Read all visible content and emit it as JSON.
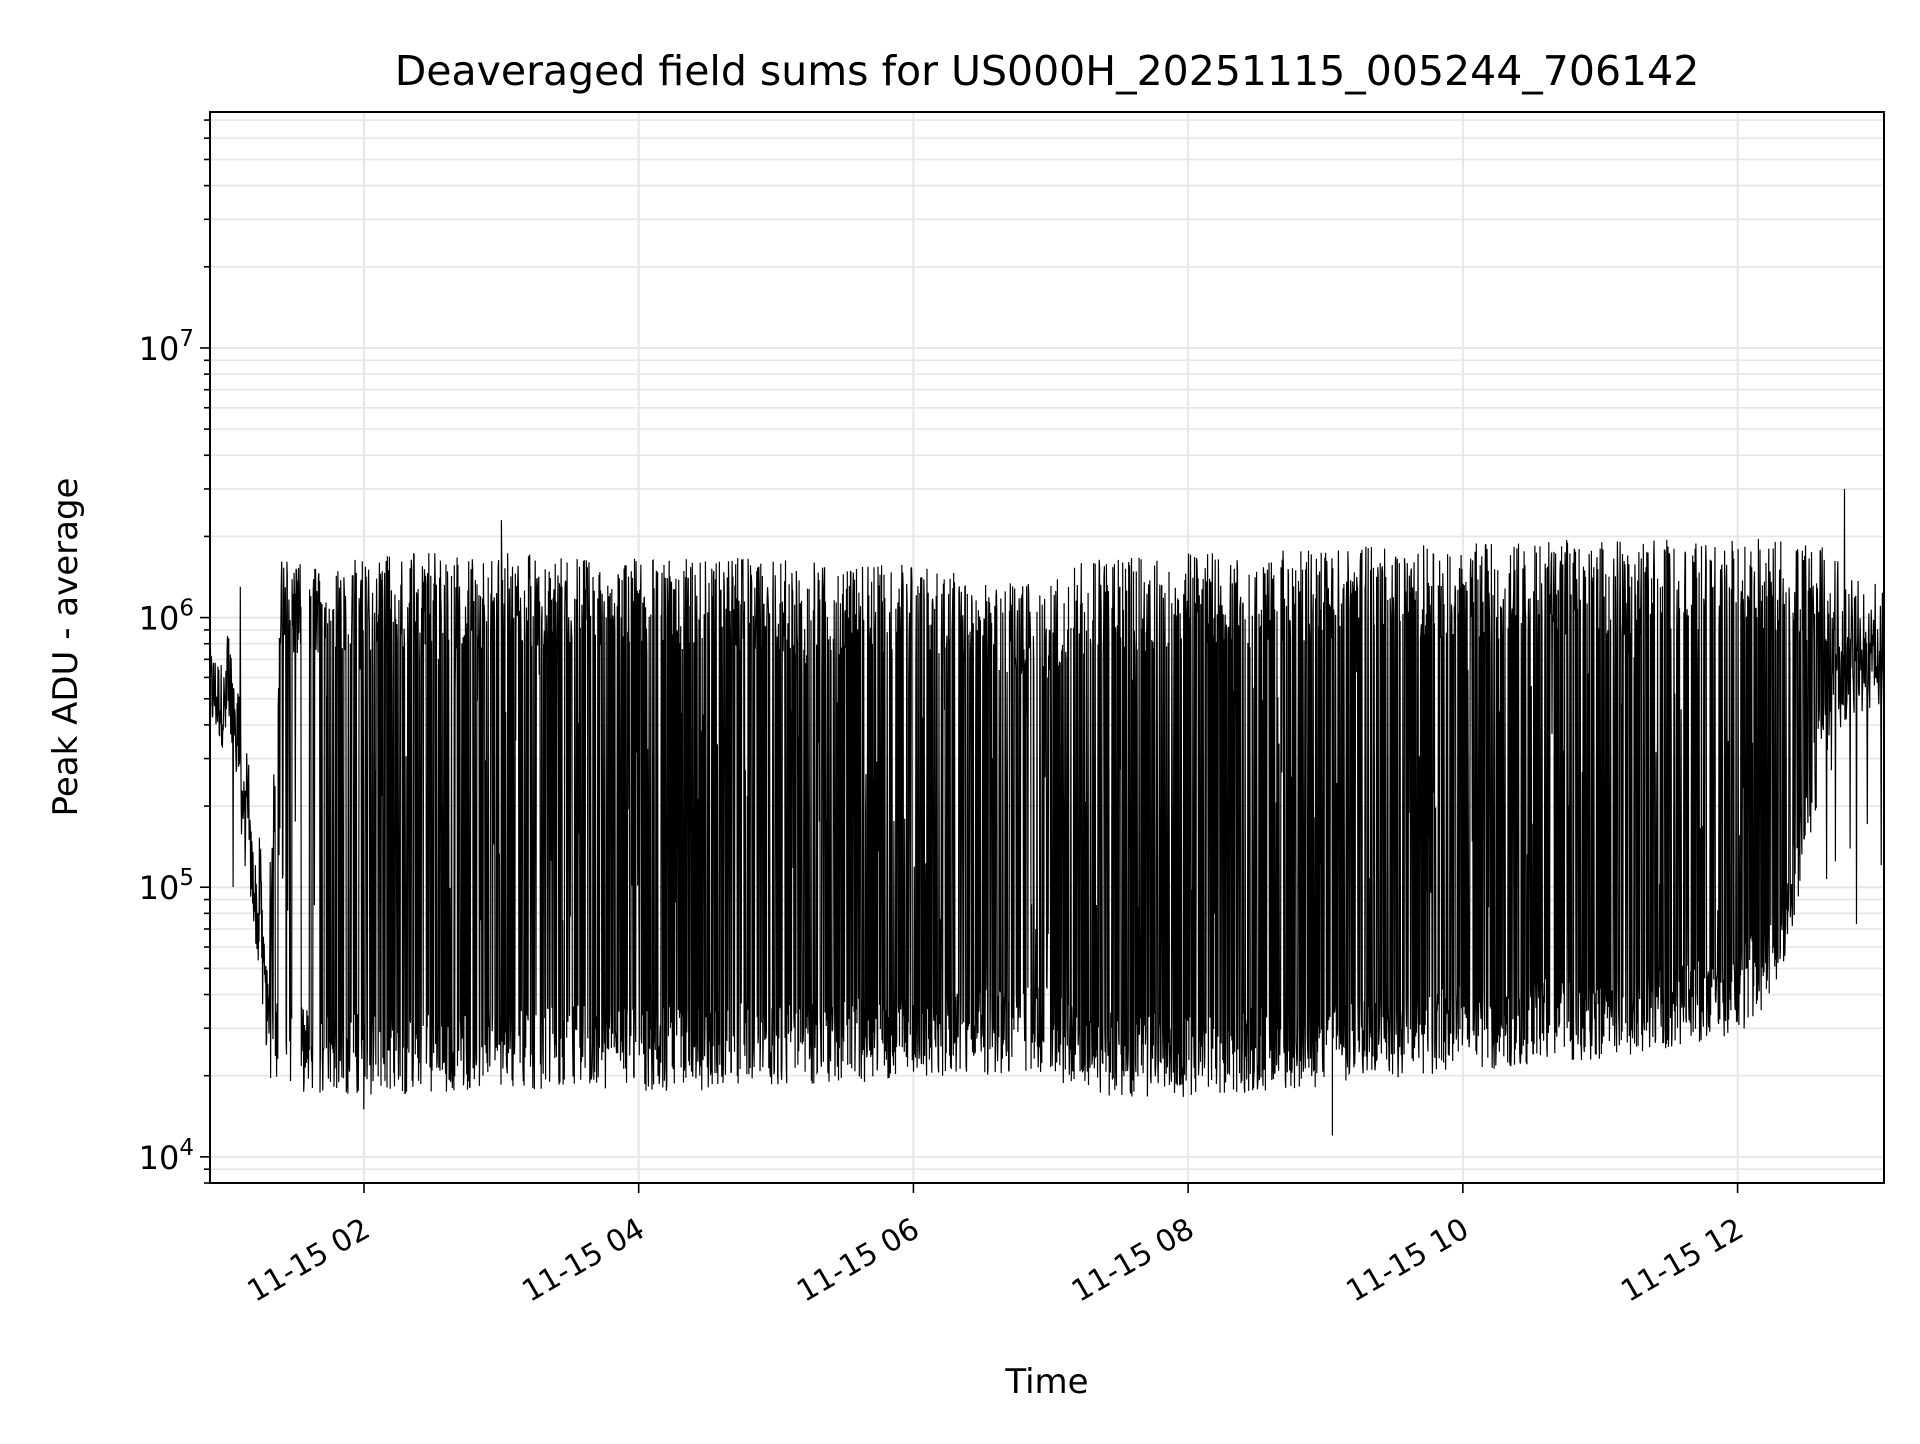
{
  "chart_data": {
    "type": "line",
    "title": "Deaveraged field sums for US000H_20251115_005244_706142",
    "xlabel": "Time",
    "ylabel": "Peak ADU - average",
    "yscale": "log",
    "ylim": [
      8000,
      75000000
    ],
    "xlim_hours": [
      0.879,
      13.066
    ],
    "x_ticks": [
      {
        "hour": 2,
        "label": "11-15 02"
      },
      {
        "hour": 4,
        "label": "11-15 04"
      },
      {
        "hour": 6,
        "label": "11-15 06"
      },
      {
        "hour": 8,
        "label": "11-15 08"
      },
      {
        "hour": 10,
        "label": "11-15 10"
      },
      {
        "hour": 12,
        "label": "11-15 12"
      }
    ],
    "y_ticks": [
      {
        "value": 10000,
        "base": "10",
        "exp": "4"
      },
      {
        "value": 100000,
        "base": "10",
        "exp": "5"
      },
      {
        "value": 1000000,
        "base": "10",
        "exp": "6"
      },
      {
        "value": 10000000,
        "base": "10",
        "exp": "7"
      }
    ],
    "grid": true,
    "line_color": "#000000",
    "grid_color": "#e6e6e6",
    "series_envelope": {
      "fields": [
        "hour",
        "upper",
        "lower",
        "switch_density"
      ],
      "points": [
        [
          0.88,
          800000,
          550000,
          0.0
        ],
        [
          1.0,
          700000,
          450000,
          0.02
        ],
        [
          1.1,
          320000,
          220000,
          0.03
        ],
        [
          1.2,
          150000,
          100000,
          0.04
        ],
        [
          1.3,
          55000,
          32000,
          0.05
        ],
        [
          1.4,
          1100000,
          25000,
          0.12
        ],
        [
          1.7,
          1100000,
          25000,
          0.2
        ],
        [
          2.0,
          1150000,
          24000,
          0.45
        ],
        [
          3.0,
          1150000,
          26000,
          0.5
        ],
        [
          4.0,
          1100000,
          25000,
          0.5
        ],
        [
          5.0,
          1100000,
          26000,
          0.5
        ],
        [
          6.0,
          1050000,
          28000,
          0.5
        ],
        [
          7.0,
          900000,
          30000,
          0.4
        ],
        [
          7.2,
          1100000,
          24000,
          0.5
        ],
        [
          8.0,
          1150000,
          24000,
          0.5
        ],
        [
          9.0,
          1200000,
          26000,
          0.5
        ],
        [
          10.0,
          1250000,
          30000,
          0.5
        ],
        [
          11.0,
          1300000,
          33000,
          0.5
        ],
        [
          12.0,
          1300000,
          40000,
          0.5
        ],
        [
          12.3,
          1300000,
          60000,
          0.5
        ],
        [
          12.5,
          1250000,
          180000,
          0.5
        ],
        [
          12.65,
          1200000,
          450000,
          0.5
        ],
        [
          12.8,
          1000000,
          600000,
          0.5
        ],
        [
          13.066,
          900000,
          650000,
          0.5
        ]
      ],
      "spikes": [
        [
          3.0,
          2300000
        ],
        [
          12.78,
          3000000
        ],
        [
          9.05,
          12000
        ],
        [
          1.1,
          1300000
        ],
        [
          2.0,
          15000
        ]
      ]
    }
  }
}
